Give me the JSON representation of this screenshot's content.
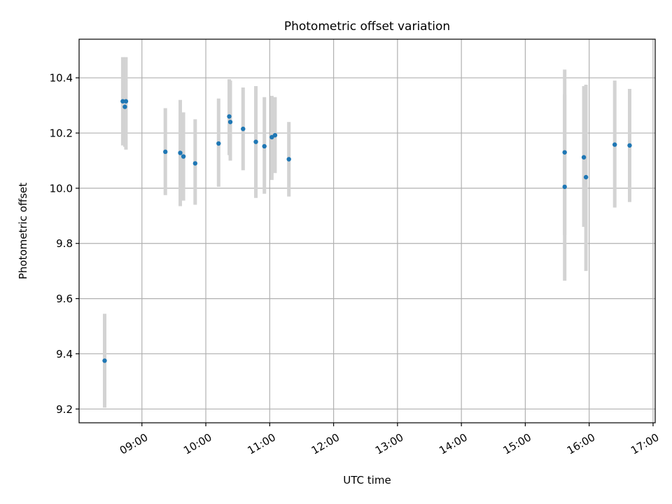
{
  "chart_data": {
    "type": "scatter",
    "title": "Photometric offset variation",
    "xlabel": "UTC time",
    "ylabel": "Photometric offset",
    "x_scale": "time",
    "xlim": [
      "08:01",
      "17:02"
    ],
    "ylim": [
      9.15,
      10.54
    ],
    "x_ticks": [
      "09:00",
      "10:00",
      "11:00",
      "12:00",
      "13:00",
      "14:00",
      "15:00",
      "16:00",
      "17:00"
    ],
    "y_ticks": [
      "9.2",
      "9.4",
      "9.6",
      "9.8",
      "10.0",
      "10.2",
      "10.4"
    ],
    "grid": true,
    "colors": {
      "point": "#1f77b4",
      "errorbar": "#d3d3d3",
      "grid": "#b0b0b0"
    },
    "points": [
      {
        "x": "08:25",
        "y": 9.375,
        "lo": 9.205,
        "hi": 9.545
      },
      {
        "x": "08:42",
        "y": 10.315,
        "lo": 10.155,
        "hi": 10.475
      },
      {
        "x": "08:44",
        "y": 10.295,
        "lo": 10.15,
        "hi": 10.47
      },
      {
        "x": "08:45",
        "y": 10.315,
        "lo": 10.14,
        "hi": 10.475
      },
      {
        "x": "09:22",
        "y": 10.132,
        "lo": 9.975,
        "hi": 10.29
      },
      {
        "x": "09:36",
        "y": 10.128,
        "lo": 9.935,
        "hi": 10.32
      },
      {
        "x": "09:39",
        "y": 10.115,
        "lo": 9.955,
        "hi": 10.275
      },
      {
        "x": "09:50",
        "y": 10.09,
        "lo": 9.94,
        "hi": 10.25
      },
      {
        "x": "10:12",
        "y": 10.162,
        "lo": 10.005,
        "hi": 10.325
      },
      {
        "x": "10:22",
        "y": 10.26,
        "lo": 10.12,
        "hi": 10.395
      },
      {
        "x": "10:23",
        "y": 10.24,
        "lo": 10.1,
        "hi": 10.39
      },
      {
        "x": "10:35",
        "y": 10.215,
        "lo": 10.065,
        "hi": 10.365
      },
      {
        "x": "10:47",
        "y": 10.168,
        "lo": 9.965,
        "hi": 10.37
      },
      {
        "x": "10:55",
        "y": 10.152,
        "lo": 9.98,
        "hi": 10.33
      },
      {
        "x": "11:02",
        "y": 10.185,
        "lo": 10.03,
        "hi": 10.335
      },
      {
        "x": "11:05",
        "y": 10.192,
        "lo": 10.055,
        "hi": 10.33
      },
      {
        "x": "11:18",
        "y": 10.105,
        "lo": 9.97,
        "hi": 10.24
      },
      {
        "x": "15:37",
        "y": 10.13,
        "lo": 9.83,
        "hi": 10.43
      },
      {
        "x": "15:37",
        "y": 10.005,
        "lo": 9.665,
        "hi": 10.34
      },
      {
        "x": "15:55",
        "y": 10.112,
        "lo": 9.86,
        "hi": 10.37
      },
      {
        "x": "15:57",
        "y": 10.04,
        "lo": 9.7,
        "hi": 10.375
      },
      {
        "x": "16:24",
        "y": 10.158,
        "lo": 9.93,
        "hi": 10.39
      },
      {
        "x": "16:38",
        "y": 10.155,
        "lo": 9.95,
        "hi": 10.36
      }
    ]
  }
}
